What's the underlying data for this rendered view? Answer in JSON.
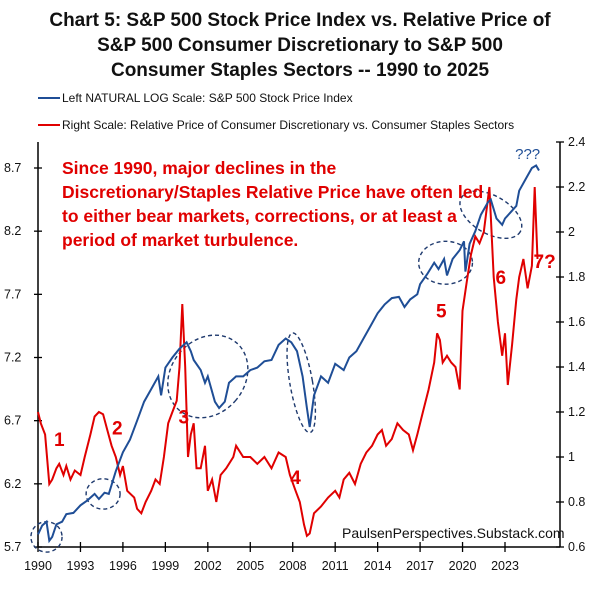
{
  "chart_data": {
    "type": "line",
    "title_lines": [
      "Chart 5: S&P 500 Stock Price Index vs. Relative Price of",
      "S&P 500 Consumer Discretionary to S&P 500",
      "Consumer Staples Sectors -- 1990 to 2025"
    ],
    "legend": [
      {
        "label": "Left NATURAL LOG Scale: S&P 500 Stock Price Index",
        "color": "#1f4e96"
      },
      {
        "label": "Right Scale: Relative Price of Consumer Discretionary vs. Consumer Staples Sectors",
        "color": "#e00000"
      }
    ],
    "x_ticks": [
      "1990",
      "1993",
      "1996",
      "1999",
      "2002",
      "2005",
      "2008",
      "2011",
      "2014",
      "2017",
      "2020",
      "2023"
    ],
    "xlim": [
      1990,
      2025.5
    ],
    "left_axis": {
      "label": "Left NATURAL LOG Scale",
      "ylim": [
        5.7,
        8.9
      ],
      "ticks": [
        "5.7",
        "6.2",
        "6.7",
        "7.2",
        "7.7",
        "8.2",
        "8.7"
      ]
    },
    "right_axis": {
      "label": "Right Scale",
      "ylim": [
        0.6,
        2.4
      ],
      "ticks": [
        "0.6",
        "0.8",
        "1",
        "1.2",
        "1.4",
        "1.6",
        "1.8",
        "2",
        "2.2",
        "2.4"
      ]
    },
    "series": [
      {
        "name": "S&P 500 Stock Price Index (ln)",
        "axis": "left",
        "color": "#1f4e96",
        "points": [
          [
            1990.0,
            5.8
          ],
          [
            1990.3,
            5.87
          ],
          [
            1990.6,
            5.9
          ],
          [
            1990.8,
            5.75
          ],
          [
            1991.0,
            5.78
          ],
          [
            1991.3,
            5.88
          ],
          [
            1991.7,
            5.9
          ],
          [
            1992.0,
            5.96
          ],
          [
            1992.5,
            5.97
          ],
          [
            1993.0,
            6.03
          ],
          [
            1993.5,
            6.07
          ],
          [
            1994.0,
            6.12
          ],
          [
            1994.3,
            6.08
          ],
          [
            1994.7,
            6.13
          ],
          [
            1995.0,
            6.12
          ],
          [
            1995.5,
            6.3
          ],
          [
            1996.0,
            6.45
          ],
          [
            1996.5,
            6.55
          ],
          [
            1997.0,
            6.7
          ],
          [
            1997.5,
            6.85
          ],
          [
            1998.0,
            6.95
          ],
          [
            1998.5,
            7.05
          ],
          [
            1998.7,
            6.9
          ],
          [
            1999.0,
            7.12
          ],
          [
            1999.5,
            7.2
          ],
          [
            2000.0,
            7.27
          ],
          [
            2000.5,
            7.32
          ],
          [
            2000.8,
            7.25
          ],
          [
            2001.0,
            7.18
          ],
          [
            2001.5,
            7.1
          ],
          [
            2001.8,
            7.0
          ],
          [
            2002.0,
            7.05
          ],
          [
            2002.5,
            6.85
          ],
          [
            2002.8,
            6.8
          ],
          [
            2003.2,
            6.85
          ],
          [
            2003.5,
            7.0
          ],
          [
            2004.0,
            7.05
          ],
          [
            2004.5,
            7.05
          ],
          [
            2005.0,
            7.1
          ],
          [
            2005.5,
            7.12
          ],
          [
            2006.0,
            7.17
          ],
          [
            2006.5,
            7.18
          ],
          [
            2007.0,
            7.3
          ],
          [
            2007.5,
            7.35
          ],
          [
            2007.9,
            7.32
          ],
          [
            2008.3,
            7.25
          ],
          [
            2008.7,
            7.05
          ],
          [
            2009.0,
            6.8
          ],
          [
            2009.2,
            6.65
          ],
          [
            2009.5,
            6.9
          ],
          [
            2010.0,
            7.05
          ],
          [
            2010.5,
            7.0
          ],
          [
            2011.0,
            7.15
          ],
          [
            2011.6,
            7.1
          ],
          [
            2012.0,
            7.2
          ],
          [
            2012.5,
            7.25
          ],
          [
            2013.0,
            7.35
          ],
          [
            2013.5,
            7.45
          ],
          [
            2014.0,
            7.55
          ],
          [
            2014.5,
            7.62
          ],
          [
            2015.0,
            7.67
          ],
          [
            2015.5,
            7.68
          ],
          [
            2015.9,
            7.6
          ],
          [
            2016.3,
            7.66
          ],
          [
            2016.8,
            7.7
          ],
          [
            2017.0,
            7.78
          ],
          [
            2017.5,
            7.86
          ],
          [
            2018.0,
            7.95
          ],
          [
            2018.3,
            7.9
          ],
          [
            2018.7,
            7.98
          ],
          [
            2018.9,
            7.85
          ],
          [
            2019.3,
            7.98
          ],
          [
            2019.8,
            8.05
          ],
          [
            2020.1,
            8.12
          ],
          [
            2020.2,
            7.88
          ],
          [
            2020.5,
            8.1
          ],
          [
            2020.9,
            8.2
          ],
          [
            2021.3,
            8.33
          ],
          [
            2021.8,
            8.43
          ],
          [
            2022.0,
            8.45
          ],
          [
            2022.4,
            8.3
          ],
          [
            2022.8,
            8.25
          ],
          [
            2023.0,
            8.3
          ],
          [
            2023.4,
            8.35
          ],
          [
            2023.8,
            8.4
          ],
          [
            2024.0,
            8.52
          ],
          [
            2024.5,
            8.62
          ],
          [
            2024.9,
            8.7
          ],
          [
            2025.2,
            8.72
          ],
          [
            2025.4,
            8.68
          ]
        ]
      },
      {
        "name": "Relative Price of Consumer Discretionary vs. Consumer Staples",
        "axis": "right",
        "color": "#e00000",
        "points": [
          [
            1990.0,
            1.2
          ],
          [
            1990.2,
            1.15
          ],
          [
            1990.5,
            1.1
          ],
          [
            1990.8,
            0.88
          ],
          [
            1991.0,
            0.9
          ],
          [
            1991.3,
            0.95
          ],
          [
            1991.5,
            0.97
          ],
          [
            1991.8,
            0.92
          ],
          [
            1992.0,
            0.96
          ],
          [
            1992.3,
            0.9
          ],
          [
            1992.6,
            0.94
          ],
          [
            1993.0,
            0.92
          ],
          [
            1993.3,
            1.0
          ],
          [
            1993.7,
            1.1
          ],
          [
            1994.0,
            1.18
          ],
          [
            1994.3,
            1.2
          ],
          [
            1994.6,
            1.19
          ],
          [
            1994.9,
            1.12
          ],
          [
            1995.2,
            1.05
          ],
          [
            1995.5,
            1.0
          ],
          [
            1995.8,
            0.92
          ],
          [
            1996.0,
            0.96
          ],
          [
            1996.3,
            0.85
          ],
          [
            1996.8,
            0.82
          ],
          [
            1997.0,
            0.77
          ],
          [
            1997.3,
            0.75
          ],
          [
            1997.6,
            0.8
          ],
          [
            1998.0,
            0.85
          ],
          [
            1998.3,
            0.9
          ],
          [
            1998.6,
            0.88
          ],
          [
            1998.9,
            1.0
          ],
          [
            1999.2,
            1.15
          ],
          [
            1999.5,
            1.2
          ],
          [
            1999.8,
            1.25
          ],
          [
            2000.0,
            1.4
          ],
          [
            2000.2,
            1.68
          ],
          [
            2000.4,
            1.4
          ],
          [
            2000.6,
            1.0
          ],
          [
            2000.8,
            1.1
          ],
          [
            2001.0,
            1.15
          ],
          [
            2001.2,
            0.95
          ],
          [
            2001.5,
            0.95
          ],
          [
            2001.8,
            1.05
          ],
          [
            2002.0,
            0.85
          ],
          [
            2002.3,
            0.9
          ],
          [
            2002.6,
            0.8
          ],
          [
            2002.9,
            0.92
          ],
          [
            2003.3,
            0.95
          ],
          [
            2003.8,
            1.0
          ],
          [
            2004.0,
            1.05
          ],
          [
            2004.5,
            1.0
          ],
          [
            2005.0,
            1.0
          ],
          [
            2005.5,
            0.97
          ],
          [
            2006.0,
            1.0
          ],
          [
            2006.5,
            0.95
          ],
          [
            2007.0,
            1.02
          ],
          [
            2007.5,
            1.0
          ],
          [
            2007.8,
            0.92
          ],
          [
            2008.2,
            0.85
          ],
          [
            2008.5,
            0.8
          ],
          [
            2008.8,
            0.7
          ],
          [
            2009.0,
            0.65
          ],
          [
            2009.2,
            0.66
          ],
          [
            2009.5,
            0.75
          ],
          [
            2010.0,
            0.78
          ],
          [
            2010.5,
            0.82
          ],
          [
            2011.0,
            0.85
          ],
          [
            2011.3,
            0.82
          ],
          [
            2011.6,
            0.9
          ],
          [
            2012.0,
            0.93
          ],
          [
            2012.4,
            0.88
          ],
          [
            2012.8,
            0.97
          ],
          [
            2013.2,
            1.02
          ],
          [
            2013.6,
            1.05
          ],
          [
            2014.0,
            1.1
          ],
          [
            2014.3,
            1.12
          ],
          [
            2014.6,
            1.05
          ],
          [
            2015.0,
            1.08
          ],
          [
            2015.4,
            1.15
          ],
          [
            2015.8,
            1.12
          ],
          [
            2016.2,
            1.1
          ],
          [
            2016.5,
            1.03
          ],
          [
            2016.8,
            1.1
          ],
          [
            2017.2,
            1.2
          ],
          [
            2017.6,
            1.3
          ],
          [
            2018.0,
            1.42
          ],
          [
            2018.2,
            1.55
          ],
          [
            2018.4,
            1.52
          ],
          [
            2018.6,
            1.42
          ],
          [
            2018.9,
            1.45
          ],
          [
            2019.2,
            1.42
          ],
          [
            2019.5,
            1.4
          ],
          [
            2019.8,
            1.3
          ],
          [
            2020.0,
            1.65
          ],
          [
            2020.3,
            1.78
          ],
          [
            2020.6,
            1.9
          ],
          [
            2020.9,
            1.98
          ],
          [
            2021.2,
            1.95
          ],
          [
            2021.5,
            2.0
          ],
          [
            2021.9,
            2.2
          ],
          [
            2022.2,
            1.8
          ],
          [
            2022.5,
            1.6
          ],
          [
            2022.8,
            1.45
          ],
          [
            2023.0,
            1.55
          ],
          [
            2023.2,
            1.32
          ],
          [
            2023.5,
            1.5
          ],
          [
            2023.8,
            1.7
          ],
          [
            2024.0,
            1.8
          ],
          [
            2024.3,
            1.88
          ],
          [
            2024.6,
            1.75
          ],
          [
            2024.9,
            1.85
          ],
          [
            2025.1,
            2.2
          ],
          [
            2025.3,
            1.88
          ]
        ]
      }
    ],
    "annotations": {
      "note_lines": [
        "Since 1990, major declines in the",
        "Discretionary/Staples Relative Price have often led",
        "to either bear markets, corrections, or at least a",
        "period of market turbulence."
      ],
      "markers": [
        {
          "label": "1",
          "x": 1991.5,
          "y_right": 1.05
        },
        {
          "label": "2",
          "x": 1995.6,
          "y_right": 1.1
        },
        {
          "label": "3",
          "x": 2000.3,
          "y_right": 1.15
        },
        {
          "label": "4",
          "x": 2008.2,
          "y_right": 0.88
        },
        {
          "label": "5",
          "x": 2018.5,
          "y_right": 1.62
        },
        {
          "label": "6",
          "x": 2022.7,
          "y_right": 1.77
        },
        {
          "label": "7?",
          "x": 2025.8,
          "y_right": 1.84
        }
      ],
      "top_mark": {
        "label": "???",
        "x": 2024.6,
        "y_left": 8.77
      },
      "circles": [
        {
          "cx": 1990.6,
          "cy_left": 5.78,
          "rx_years": 1.1,
          "ry_left": 0.12
        },
        {
          "cx": 1994.6,
          "cy_left": 6.12,
          "rx_years": 1.2,
          "ry_left": 0.12
        },
        {
          "cx": 2002.0,
          "cy_left": 7.05,
          "rx_years": 2.6,
          "ry_left": 0.35,
          "rotate": 40
        },
        {
          "cx": 2008.6,
          "cy_left": 7.0,
          "rx_years": 0.8,
          "ry_left": 0.4,
          "rotate": -10
        },
        {
          "cx": 2018.8,
          "cy_left": 7.95,
          "rx_years": 1.9,
          "ry_left": 0.17
        },
        {
          "cx": 2022.0,
          "cy_left": 8.33,
          "rx_years": 2.4,
          "ry_left": 0.15,
          "rotate": 30
        }
      ],
      "source": "PaulsenPerspectives.Substack.com"
    }
  }
}
